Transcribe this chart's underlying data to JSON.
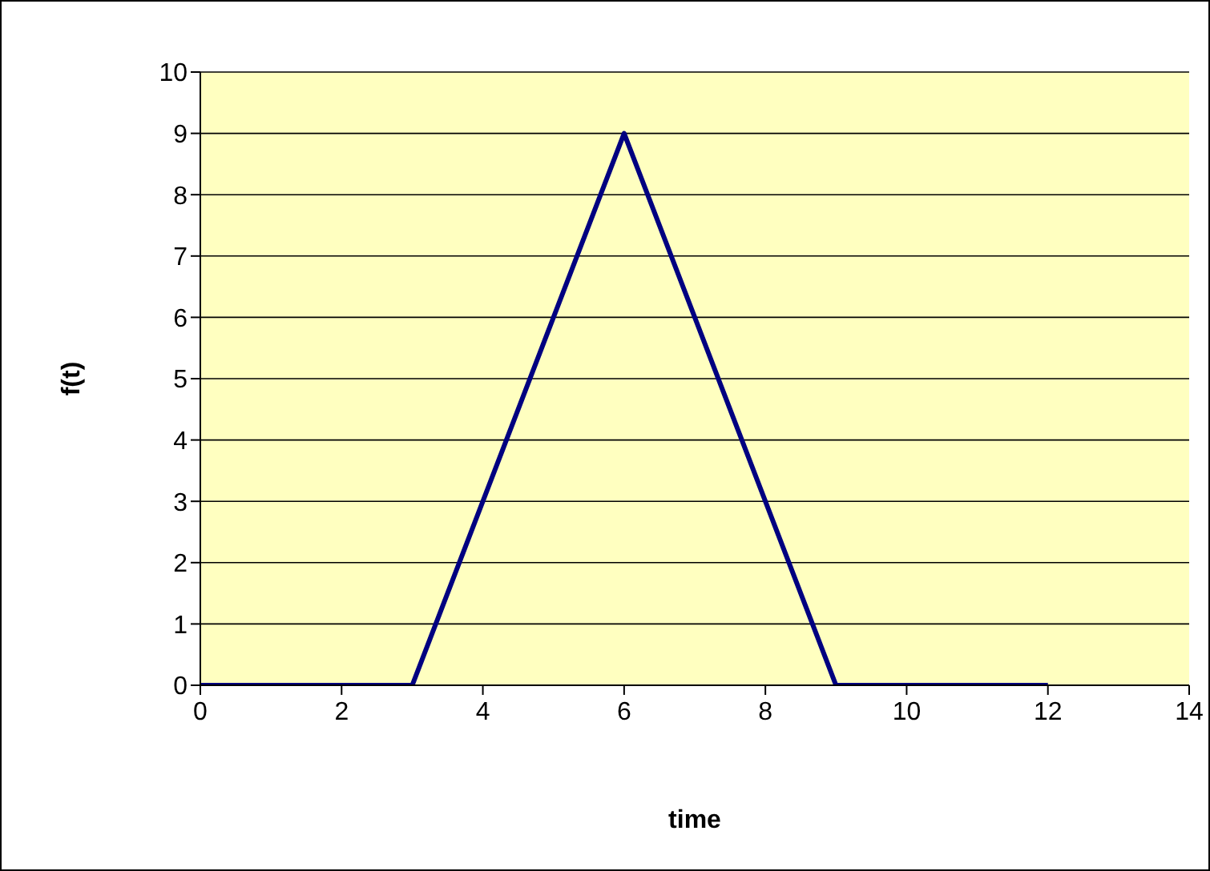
{
  "chart_data": {
    "type": "line",
    "xlabel": "time",
    "ylabel": "f(t)",
    "x": [
      0,
      3,
      6,
      9,
      12
    ],
    "series": [
      {
        "color": "#000080",
        "values": [
          0,
          0,
          9,
          0,
          0
        ]
      }
    ],
    "xlim": [
      0,
      14
    ],
    "xticks": [
      0,
      2,
      4,
      6,
      8,
      10,
      12,
      14
    ],
    "ylim": [
      0,
      10
    ],
    "yticks": [
      0,
      1,
      2,
      3,
      4,
      5,
      6,
      7,
      8,
      9,
      10
    ],
    "grid": "y",
    "legend": false,
    "marker": "none",
    "line_style": "solid"
  }
}
